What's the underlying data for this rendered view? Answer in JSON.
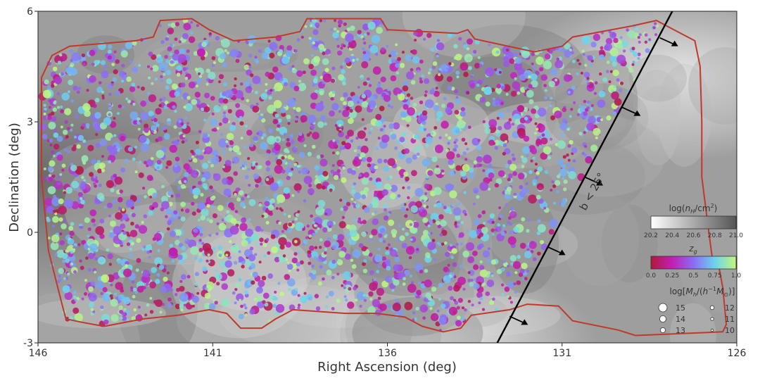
{
  "chart_data": {
    "type": "scatter",
    "xlabel": "Right Ascension (deg)",
    "ylabel": "Declination (deg)",
    "xlim": [
      146,
      126
    ],
    "ylim": [
      -3,
      6
    ],
    "x_ticks": [
      146,
      141,
      136,
      131,
      126
    ],
    "y_ticks": [
      -3,
      0,
      3,
      6
    ],
    "background_map": "log(n_H/cm^2) grayscale contours",
    "line_annotation": "b < 25°",
    "colorbars": [
      {
        "label": "log(n_H/cm^2)",
        "ticks": [
          "20.2",
          "20.4",
          "20.6",
          "20.8",
          "21.0"
        ],
        "colors": [
          "#ffffff",
          "#555555"
        ]
      },
      {
        "label": "z_g",
        "ticks": [
          "0.0",
          "0.25",
          "0.5",
          "0.75",
          "1.0"
        ],
        "colors": [
          "#b2183a",
          "#c21fb5",
          "#8c6cf5",
          "#6cd3ee",
          "#c2f77a"
        ]
      }
    ],
    "size_legend": {
      "title": "log[M_h/(h^-1 M_⊙)]",
      "entries": [
        "15",
        "14",
        "13",
        "12",
        "11",
        "10"
      ]
    },
    "series": [
      {
        "note": "galaxy groups, color = z_g, size = log M_h",
        "points_estimated": 3200
      }
    ]
  }
}
